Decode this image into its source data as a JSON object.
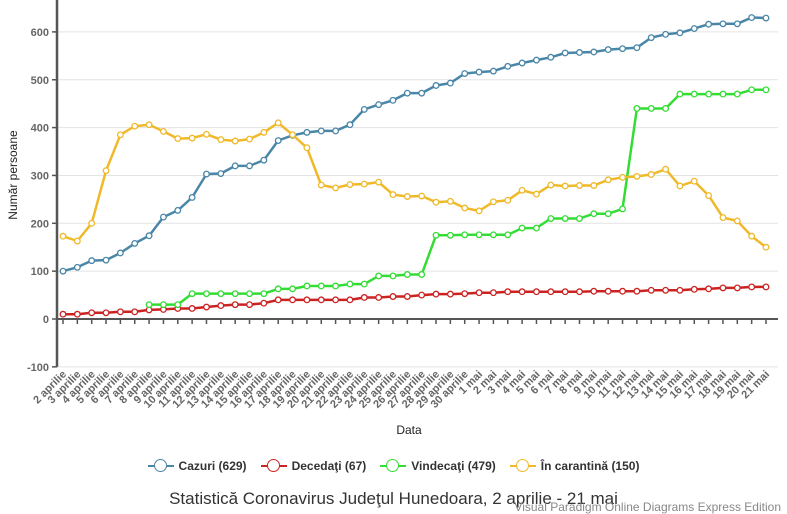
{
  "chart_data": {
    "type": "line",
    "title": "Statistică Coronavirus Judeţul Hunedoara, 2 aprilie - 21 mai",
    "xlabel": "Data",
    "ylabel": "Număr persoane",
    "ylim": [
      -100,
      650
    ],
    "yticks": [
      -100,
      0,
      100,
      200,
      300,
      400,
      500,
      600
    ],
    "grid": true,
    "legend_position": "bottom",
    "categories": [
      "2 aprilie",
      "3 aprilie",
      "4 aprilie",
      "5 aprilie",
      "6 aprilie",
      "7 aprilie",
      "8 aprilie",
      "9 aprilie",
      "10 aprilie",
      "11 aprilie",
      "12 aprilie",
      "13 aprilie",
      "14 aprilie",
      "15 aprilie",
      "16 aprilie",
      "17 aprilie",
      "18 aprilie",
      "19 aprilie",
      "20 aprilie",
      "21 aprilie",
      "22 aprilie",
      "23 aprilie",
      "24 aprilie",
      "25 aprilie",
      "26 aprilie",
      "27 aprilie",
      "28 aprilie",
      "29 aprilie",
      "30 aprilie",
      "1 mai",
      "2 mai",
      "3 mai",
      "4 mai",
      "5 mai",
      "6 mai",
      "7 mai",
      "8 mai",
      "9 mai",
      "10 mai",
      "11 mai",
      "12 mai",
      "13 mai",
      "14 mai",
      "15 mai",
      "16 mai",
      "17 mai",
      "18 mai",
      "19 mai",
      "20 mai",
      "21 mai"
    ],
    "series": [
      {
        "name": "Cazuri",
        "legend": "Cazuri (629)",
        "color": "#4a86a8",
        "values": [
          100,
          108,
          122,
          123,
          138,
          158,
          174,
          213,
          227,
          254,
          303,
          304,
          320,
          320,
          332,
          373,
          384,
          390,
          393,
          393,
          406,
          438,
          448,
          457,
          472,
          472,
          488,
          493,
          513,
          516,
          518,
          528,
          535,
          541,
          547,
          556,
          557,
          558,
          563,
          565,
          567,
          588,
          595,
          598,
          607,
          616,
          617,
          617,
          630,
          629
        ]
      },
      {
        "name": "Decedaţi",
        "legend": "Decedaţi (67)",
        "color": "#cc2222",
        "values": [
          10,
          10,
          13,
          13,
          15,
          15,
          19,
          20,
          22,
          22,
          25,
          28,
          30,
          30,
          33,
          40,
          40,
          40,
          40,
          40,
          40,
          45,
          45,
          47,
          47,
          50,
          52,
          52,
          53,
          55,
          55,
          57,
          57,
          57,
          57,
          57,
          57,
          58,
          58,
          58,
          58,
          60,
          60,
          60,
          62,
          63,
          65,
          65,
          67,
          67
        ]
      },
      {
        "name": "Vindecaţi",
        "legend": "Vindecaţi (479)",
        "color": "#33dd33",
        "values": [
          null,
          null,
          null,
          null,
          null,
          null,
          30,
          30,
          30,
          53,
          53,
          53,
          53,
          53,
          53,
          63,
          63,
          69,
          69,
          69,
          73,
          73,
          90,
          90,
          93,
          93,
          175,
          175,
          176,
          176,
          176,
          176,
          190,
          190,
          210,
          210,
          210,
          220,
          220,
          230,
          440,
          440,
          440,
          470,
          470,
          470,
          470,
          470,
          479,
          479
        ]
      },
      {
        "name": "În carantină",
        "legend": "În carantină (150)",
        "color": "#f0b92a",
        "values": [
          173,
          163,
          200,
          310,
          385,
          403,
          406,
          392,
          377,
          378,
          386,
          375,
          372,
          376,
          390,
          410,
          385,
          358,
          280,
          274,
          281,
          282,
          286,
          260,
          256,
          257,
          244,
          246,
          232,
          226,
          245,
          248,
          269,
          261,
          280,
          278,
          279,
          279,
          291,
          296,
          298,
          302,
          313,
          278,
          288,
          258,
          212,
          205,
          173,
          150
        ]
      }
    ]
  },
  "watermark": "Visual Paradigm Online Diagrams Express Edition"
}
